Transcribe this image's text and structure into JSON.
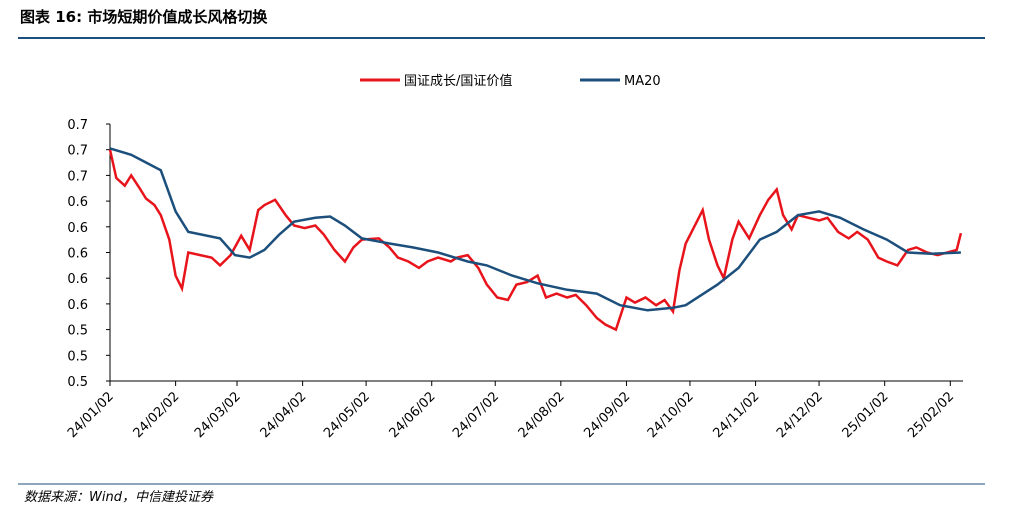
{
  "header": {
    "title": "图表 16: 市场短期价值成长风格切换"
  },
  "footer": {
    "source": "数据来源：Wind，中信建投证券"
  },
  "chart_data": {
    "type": "line",
    "xlim": [
      "24/01/02",
      "25/02/08"
    ],
    "xticks": [
      "24/01/02",
      "24/02/02",
      "24/03/02",
      "24/04/02",
      "24/05/02",
      "24/06/02",
      "24/07/02",
      "24/08/02",
      "24/09/02",
      "24/10/02",
      "24/11/02",
      "24/12/02",
      "25/01/02",
      "25/02/02"
    ],
    "ylim": [
      0.5,
      0.7
    ],
    "yticks": [
      {
        "value": 0.5,
        "label": "0.5"
      },
      {
        "value": 0.52,
        "label": "0.5"
      },
      {
        "value": 0.54,
        "label": "0.5"
      },
      {
        "value": 0.56,
        "label": "0.6"
      },
      {
        "value": 0.58,
        "label": "0.6"
      },
      {
        "value": 0.6,
        "label": "0.6"
      },
      {
        "value": 0.62,
        "label": "0.6"
      },
      {
        "value": 0.64,
        "label": "0.6"
      },
      {
        "value": 0.66,
        "label": "0.7"
      },
      {
        "value": 0.68,
        "label": "0.7"
      },
      {
        "value": 0.7,
        "label": "0.7"
      }
    ],
    "legend": "top",
    "series": [
      {
        "name": "国证成长/国证价值",
        "color": "#e8141b",
        "x": [
          "24/01/02",
          "24/01/05",
          "24/01/09",
          "24/01/12",
          "24/01/16",
          "24/01/19",
          "24/01/23",
          "24/01/26",
          "24/01/30",
          "24/02/02",
          "24/02/05",
          "24/02/08",
          "24/02/19",
          "24/02/23",
          "24/02/28",
          "24/03/04",
          "24/03/08",
          "24/03/12",
          "24/03/15",
          "24/03/20",
          "24/03/25",
          "24/03/29",
          "24/04/03",
          "24/04/08",
          "24/04/12",
          "24/04/17",
          "24/04/22",
          "24/04/26",
          "24/04/30",
          "24/05/08",
          "24/05/13",
          "24/05/17",
          "24/05/22",
          "24/05/27",
          "24/05/31",
          "24/06/05",
          "24/06/11",
          "24/06/14",
          "24/06/19",
          "24/06/24",
          "24/06/28",
          "24/07/03",
          "24/07/08",
          "24/07/12",
          "24/07/17",
          "24/07/22",
          "24/07/26",
          "24/07/31",
          "24/08/05",
          "24/08/09",
          "24/08/14",
          "24/08/19",
          "24/08/23",
          "24/08/28",
          "24/09/02",
          "24/09/06",
          "24/09/11",
          "24/09/16",
          "24/09/20",
          "24/09/24",
          "24/09/27",
          "24/09/30",
          "24/10/08",
          "24/10/11",
          "24/10/15",
          "24/10/18",
          "24/10/22",
          "24/10/25",
          "24/10/30",
          "24/11/04",
          "24/11/08",
          "24/11/12",
          "24/11/15",
          "24/11/19",
          "24/11/22",
          "24/11/27",
          "24/12/02",
          "24/12/06",
          "24/12/11",
          "24/12/16",
          "24/12/20",
          "24/12/25",
          "24/12/30",
          "25/01/03",
          "25/01/08",
          "25/01/13",
          "25/01/17",
          "25/01/22",
          "25/01/27",
          "25/02/05",
          "25/02/07"
        ],
        "values": [
          0.68,
          0.658,
          0.652,
          0.66,
          0.65,
          0.642,
          0.637,
          0.629,
          0.61,
          0.582,
          0.572,
          0.6,
          0.596,
          0.59,
          0.598,
          0.613,
          0.602,
          0.633,
          0.637,
          0.641,
          0.629,
          0.621,
          0.619,
          0.621,
          0.614,
          0.602,
          0.593,
          0.604,
          0.61,
          0.611,
          0.604,
          0.596,
          0.593,
          0.588,
          0.593,
          0.596,
          0.593,
          0.596,
          0.598,
          0.588,
          0.575,
          0.565,
          0.563,
          0.575,
          0.577,
          0.582,
          0.565,
          0.568,
          0.565,
          0.567,
          0.559,
          0.549,
          0.544,
          0.54,
          0.565,
          0.561,
          0.565,
          0.559,
          0.563,
          0.554,
          0.586,
          0.607,
          0.633,
          0.61,
          0.59,
          0.58,
          0.61,
          0.624,
          0.611,
          0.629,
          0.641,
          0.649,
          0.629,
          0.618,
          0.629,
          0.627,
          0.625,
          0.627,
          0.616,
          0.611,
          0.616,
          0.61,
          0.596,
          0.593,
          0.59,
          0.602,
          0.604,
          0.6,
          0.598,
          0.602,
          0.615
        ]
      },
      {
        "name": "MA20",
        "color": "#1c4f7c",
        "x": [
          "24/01/02",
          "24/01/12",
          "24/01/19",
          "24/01/26",
          "24/02/02",
          "24/02/08",
          "24/02/23",
          "24/03/01",
          "24/03/08",
          "24/03/15",
          "24/03/22",
          "24/03/29",
          "24/04/08",
          "24/04/15",
          "24/04/22",
          "24/04/30",
          "24/05/13",
          "24/05/24",
          "24/06/05",
          "24/06/19",
          "24/06/28",
          "24/07/10",
          "24/07/22",
          "24/08/05",
          "24/08/19",
          "24/08/30",
          "24/09/12",
          "24/09/24",
          "24/09/30",
          "24/10/15",
          "24/10/25",
          "24/11/04",
          "24/11/12",
          "24/11/22",
          "24/12/02",
          "24/12/12",
          "24/12/23",
          "25/01/03",
          "25/01/13",
          "25/01/24",
          "25/02/07"
        ],
        "values": [
          0.681,
          0.676,
          0.67,
          0.664,
          0.632,
          0.616,
          0.611,
          0.598,
          0.596,
          0.602,
          0.614,
          0.624,
          0.627,
          0.628,
          0.621,
          0.611,
          0.607,
          0.604,
          0.6,
          0.593,
          0.59,
          0.582,
          0.576,
          0.571,
          0.568,
          0.559,
          0.555,
          0.557,
          0.559,
          0.575,
          0.588,
          0.61,
          0.616,
          0.629,
          0.632,
          0.627,
          0.618,
          0.61,
          0.6,
          0.599,
          0.6
        ]
      }
    ]
  }
}
